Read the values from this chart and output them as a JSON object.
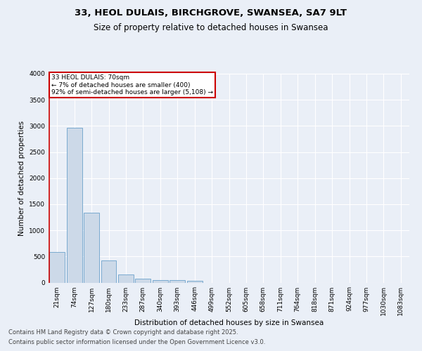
{
  "title_line1": "33, HEOL DULAIS, BIRCHGROVE, SWANSEA, SA7 9LT",
  "title_line2": "Size of property relative to detached houses in Swansea",
  "xlabel": "Distribution of detached houses by size in Swansea",
  "ylabel": "Number of detached properties",
  "categories": [
    "21sqm",
    "74sqm",
    "127sqm",
    "180sqm",
    "233sqm",
    "287sqm",
    "340sqm",
    "393sqm",
    "446sqm",
    "499sqm",
    "552sqm",
    "605sqm",
    "658sqm",
    "711sqm",
    "764sqm",
    "818sqm",
    "871sqm",
    "924sqm",
    "977sqm",
    "1030sqm",
    "1083sqm"
  ],
  "values": [
    580,
    2970,
    1340,
    430,
    155,
    80,
    50,
    50,
    40,
    0,
    0,
    0,
    0,
    0,
    0,
    0,
    0,
    0,
    0,
    0,
    0
  ],
  "bar_color": "#ccd9e8",
  "bar_edge_color": "#7aaad0",
  "annotation_box_color": "#cc0000",
  "annotation_text": "33 HEOL DULAIS: 70sqm\n← 7% of detached houses are smaller (400)\n92% of semi-detached houses are larger (5,108) →",
  "ylim": [
    0,
    4000
  ],
  "yticks": [
    0,
    500,
    1000,
    1500,
    2000,
    2500,
    3000,
    3500,
    4000
  ],
  "footer_line1": "Contains HM Land Registry data © Crown copyright and database right 2025.",
  "footer_line2": "Contains public sector information licensed under the Open Government Licence v3.0.",
  "bg_color": "#eaeff7",
  "plot_bg_color": "#eaeff7",
  "grid_color": "#ffffff",
  "title_fontsize": 9.5,
  "subtitle_fontsize": 8.5,
  "label_fontsize": 7.5,
  "tick_fontsize": 6.5,
  "footer_fontsize": 6
}
